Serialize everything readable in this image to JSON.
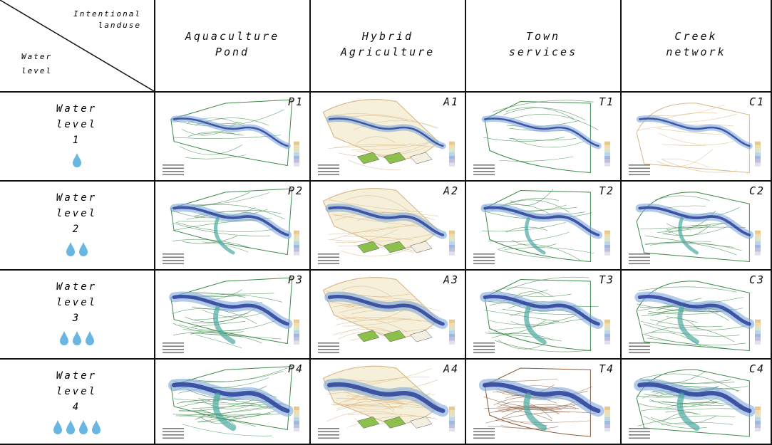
{
  "corner": {
    "top_lines": [
      "Intentional",
      "landuse"
    ],
    "bottom_lines": [
      "Water",
      "level"
    ]
  },
  "columns": [
    {
      "lines": [
        "Aquaculture",
        "Pond"
      ],
      "prefix": "P",
      "scheme": "aqua"
    },
    {
      "lines": [
        "Hybrid",
        "Agriculture"
      ],
      "prefix": "A",
      "scheme": "hybrid"
    },
    {
      "lines": [
        "Town",
        "services"
      ],
      "prefix": "T",
      "scheme": "town"
    },
    {
      "lines": [
        "Creek",
        "network"
      ],
      "prefix": "C",
      "scheme": "creek"
    }
  ],
  "rows": [
    {
      "lines": [
        "Water",
        "level",
        "1"
      ],
      "drops": 1
    },
    {
      "lines": [
        "Water",
        "level",
        "2"
      ],
      "drops": 2
    },
    {
      "lines": [
        "Water",
        "level",
        "3"
      ],
      "drops": 3
    },
    {
      "lines": [
        "Water",
        "level",
        "4"
      ],
      "drops": 4
    }
  ],
  "tags": [
    [
      "P1",
      "A1",
      "T1",
      "C1"
    ],
    [
      "P2",
      "A2",
      "T2",
      "C2"
    ],
    [
      "P3",
      "A3",
      "T3",
      "C3"
    ],
    [
      "P4",
      "A4",
      "T4",
      "C4"
    ]
  ],
  "colors": {
    "water": "#6ab6e3",
    "channel_dark": "#2a3f9a",
    "channel_light": "#7fa8d8",
    "contour_green": "#3d8a4a",
    "contour_tan": "#d9b98a",
    "contour_brown": "#8a5a3a",
    "leaf_green": "#8cc04a"
  }
}
